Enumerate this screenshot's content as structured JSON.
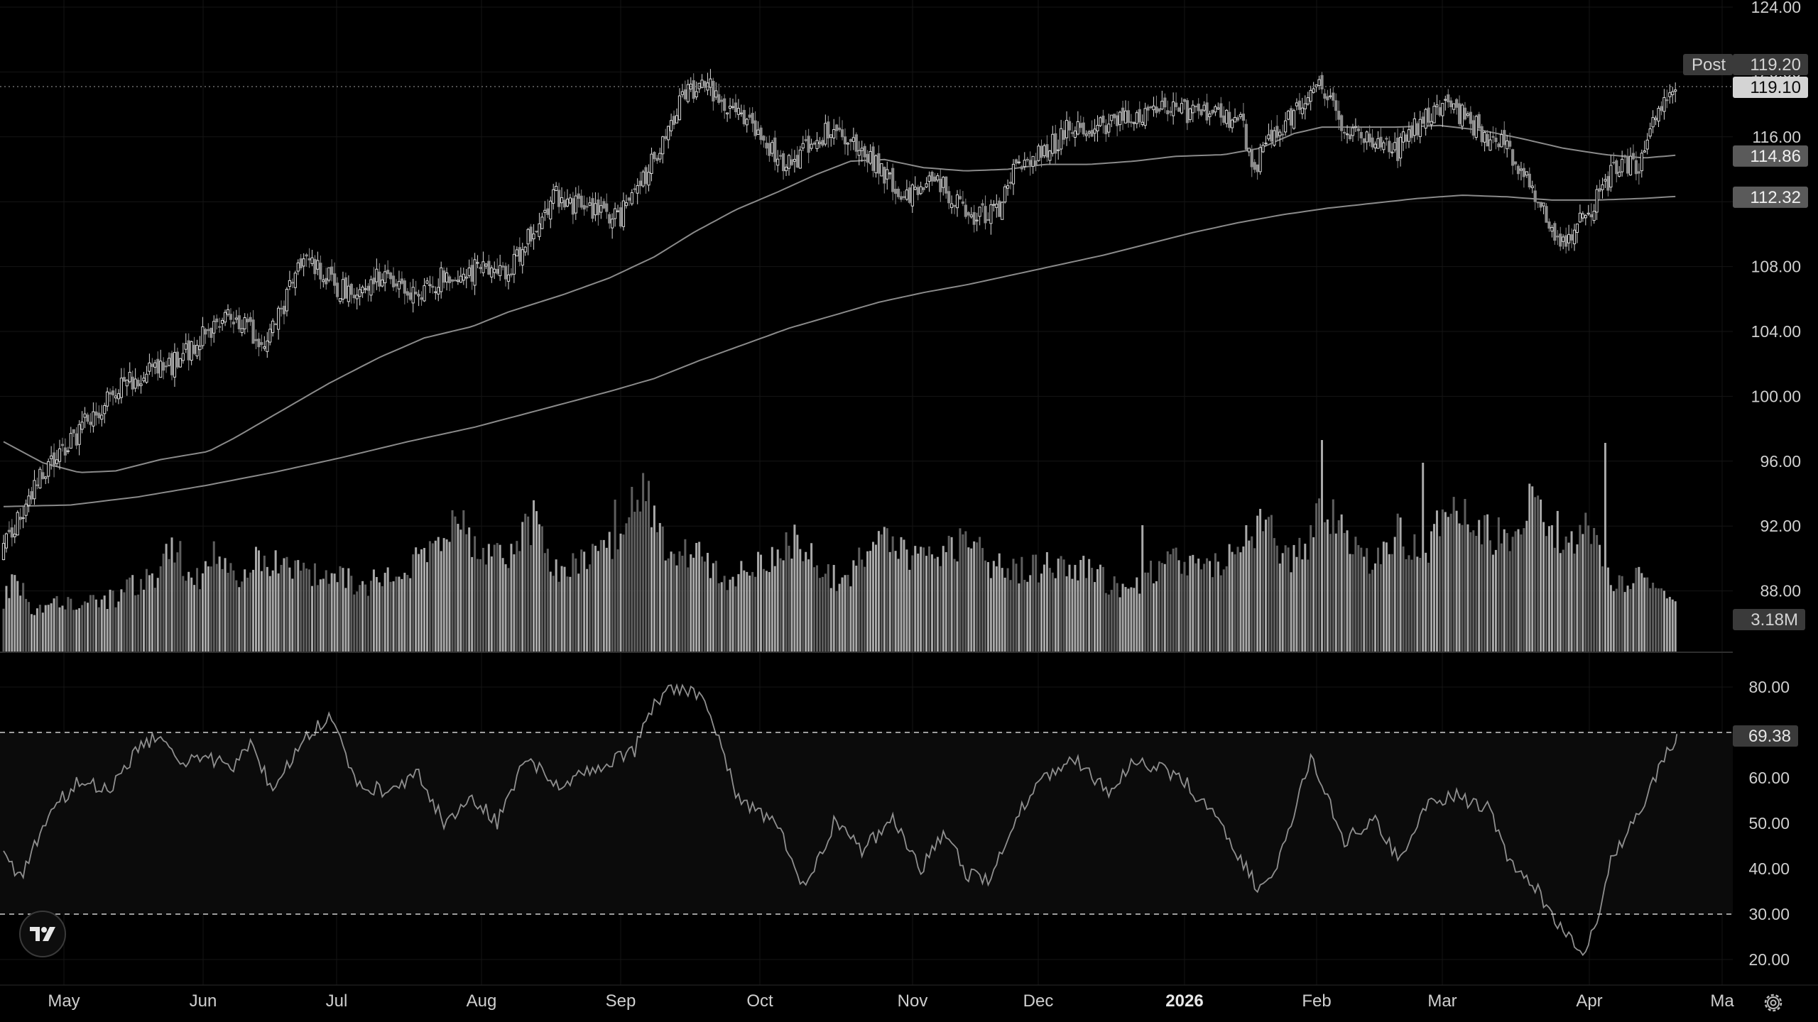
{
  "chart_data": {
    "type": "candlestick",
    "price_axis": {
      "ticks": [
        "124.00",
        "120.00",
        "116.00",
        "112.00",
        "108.00",
        "104.00",
        "100.00",
        "96.00",
        "92.00",
        "88.00"
      ],
      "range": [
        84,
        124
      ]
    },
    "rsi_axis": {
      "ticks": [
        "80.00",
        "70.00",
        "60.00",
        "50.00",
        "40.00",
        "30.00",
        "20.00"
      ],
      "range": [
        16.5,
        89
      ],
      "upper_band": 70,
      "lower_band": 30
    },
    "x_axis": {
      "labels": [
        "May",
        "Jun",
        "Jul",
        "Aug",
        "Sep",
        "Oct",
        "Nov",
        "Dec",
        "2026",
        "Feb",
        "Mar",
        "Apr",
        "Ma"
      ],
      "bold_label": "2026"
    },
    "badges": {
      "post_label": "Post",
      "post_price": "119.20",
      "last_price": "119.10",
      "ma_fast": "114.86",
      "ma_slow": "112.32",
      "volume": "3.18M",
      "rsi": "69.38"
    },
    "anchors": {
      "close": [
        [
          0,
          90.8
        ],
        [
          10,
          94.2
        ],
        [
          25,
          97.5
        ],
        [
          44,
          100.9
        ],
        [
          60,
          102.0
        ],
        [
          79,
          104.9
        ],
        [
          94,
          103.3
        ],
        [
          107,
          108.5
        ],
        [
          124,
          106.1
        ],
        [
          132,
          107.2
        ],
        [
          147,
          106.5
        ],
        [
          162,
          107.8
        ],
        [
          180,
          107.7
        ],
        [
          197,
          112.4
        ],
        [
          210,
          111.3
        ],
        [
          220,
          111.1
        ],
        [
          230,
          114.0
        ],
        [
          237,
          116.2
        ],
        [
          242,
          119.0
        ],
        [
          252,
          118.9
        ],
        [
          262,
          117.4
        ],
        [
          272,
          115.3
        ],
        [
          280,
          114.2
        ],
        [
          288,
          115.8
        ],
        [
          297,
          116.5
        ],
        [
          310,
          114.4
        ],
        [
          321,
          112.3
        ],
        [
          331,
          113.9
        ],
        [
          343,
          111.0
        ],
        [
          354,
          111.4
        ],
        [
          361,
          114.0
        ],
        [
          371,
          115.0
        ],
        [
          380,
          116.5
        ],
        [
          394,
          116.9
        ],
        [
          403,
          117.1
        ],
        [
          413,
          117.8
        ],
        [
          428,
          117.4
        ],
        [
          441,
          116.9
        ],
        [
          446,
          114.2
        ],
        [
          452,
          116.2
        ],
        [
          460,
          117.4
        ],
        [
          470,
          119.2
        ],
        [
          478,
          116.3
        ],
        [
          487,
          115.9
        ],
        [
          497,
          115.2
        ],
        [
          507,
          117.3
        ],
        [
          517,
          117.8
        ],
        [
          527,
          116.3
        ],
        [
          537,
          115.2
        ],
        [
          547,
          112.3
        ],
        [
          555,
          109.4
        ],
        [
          565,
          111.3
        ],
        [
          575,
          114.2
        ],
        [
          585,
          114.5
        ],
        [
          588,
          117.2
        ],
        [
          596,
          119.1
        ]
      ],
      "rsi": [
        [
          0,
          43
        ],
        [
          6,
          38
        ],
        [
          16,
          52
        ],
        [
          26,
          59
        ],
        [
          38,
          58
        ],
        [
          48,
          66
        ],
        [
          56,
          70
        ],
        [
          63,
          62
        ],
        [
          70,
          65
        ],
        [
          82,
          62
        ],
        [
          88,
          68
        ],
        [
          96,
          57
        ],
        [
          104,
          66
        ],
        [
          116,
          74
        ],
        [
          127,
          58
        ],
        [
          140,
          57
        ],
        [
          148,
          61
        ],
        [
          157,
          50
        ],
        [
          167,
          56
        ],
        [
          176,
          50
        ],
        [
          186,
          64
        ],
        [
          200,
          58
        ],
        [
          207,
          61
        ],
        [
          225,
          66
        ],
        [
          232,
          77
        ],
        [
          240,
          80
        ],
        [
          250,
          78
        ],
        [
          262,
          55
        ],
        [
          276,
          50
        ],
        [
          286,
          35
        ],
        [
          296,
          50
        ],
        [
          306,
          44
        ],
        [
          317,
          51
        ],
        [
          327,
          40
        ],
        [
          336,
          48
        ],
        [
          343,
          39
        ],
        [
          351,
          37
        ],
        [
          362,
          53
        ],
        [
          371,
          60
        ],
        [
          382,
          64
        ],
        [
          394,
          57
        ],
        [
          403,
          64
        ],
        [
          412,
          62
        ],
        [
          420,
          60
        ],
        [
          431,
          52
        ],
        [
          448,
          35
        ],
        [
          457,
          45
        ],
        [
          466,
          65
        ],
        [
          478,
          46
        ],
        [
          489,
          51
        ],
        [
          497,
          42
        ],
        [
          508,
          54
        ],
        [
          518,
          56
        ],
        [
          530,
          53
        ],
        [
          537,
          41
        ],
        [
          547,
          35
        ],
        [
          555,
          27
        ],
        [
          563,
          22
        ],
        [
          569,
          30
        ],
        [
          573,
          42
        ],
        [
          584,
          53
        ],
        [
          593,
          66
        ],
        [
          598,
          69.38
        ]
      ],
      "ma50": [
        [
          0,
          97.2
        ],
        [
          14,
          95.9
        ],
        [
          27,
          95.3
        ],
        [
          40,
          95.4
        ],
        [
          56,
          96.1
        ],
        [
          73,
          96.6
        ],
        [
          82,
          97.4
        ],
        [
          97,
          98.9
        ],
        [
          116,
          100.8
        ],
        [
          134,
          102.4
        ],
        [
          150,
          103.6
        ],
        [
          167,
          104.3
        ],
        [
          180,
          105.2
        ],
        [
          200,
          106.3
        ],
        [
          216,
          107.3
        ],
        [
          232,
          108.6
        ],
        [
          246,
          110.1
        ],
        [
          261,
          111.5
        ],
        [
          276,
          112.6
        ],
        [
          290,
          113.7
        ],
        [
          302,
          114.5
        ],
        [
          314,
          114.6
        ],
        [
          328,
          114.1
        ],
        [
          343,
          113.9
        ],
        [
          358,
          114.0
        ],
        [
          371,
          114.3
        ],
        [
          387,
          114.3
        ],
        [
          403,
          114.5
        ],
        [
          418,
          114.8
        ],
        [
          435,
          114.9
        ],
        [
          448,
          115.3
        ],
        [
          460,
          116.2
        ],
        [
          470,
          116.6
        ],
        [
          482,
          116.6
        ],
        [
          497,
          116.6
        ],
        [
          512,
          116.7
        ],
        [
          527,
          116.4
        ],
        [
          541,
          115.9
        ],
        [
          556,
          115.3
        ],
        [
          571,
          114.9
        ],
        [
          585,
          114.7
        ],
        [
          596,
          114.86
        ]
      ],
      "ma200": [
        [
          0,
          93.2
        ],
        [
          24,
          93.3
        ],
        [
          48,
          93.8
        ],
        [
          72,
          94.5
        ],
        [
          96,
          95.3
        ],
        [
          120,
          96.2
        ],
        [
          144,
          97.2
        ],
        [
          168,
          98.1
        ],
        [
          192,
          99.2
        ],
        [
          216,
          100.3
        ],
        [
          232,
          101.1
        ],
        [
          248,
          102.2
        ],
        [
          264,
          103.2
        ],
        [
          280,
          104.2
        ],
        [
          296,
          105.0
        ],
        [
          312,
          105.8
        ],
        [
          328,
          106.4
        ],
        [
          344,
          106.9
        ],
        [
          360,
          107.5
        ],
        [
          376,
          108.1
        ],
        [
          392,
          108.7
        ],
        [
          408,
          109.4
        ],
        [
          424,
          110.1
        ],
        [
          440,
          110.7
        ],
        [
          456,
          111.2
        ],
        [
          472,
          111.6
        ],
        [
          488,
          111.9
        ],
        [
          504,
          112.2
        ],
        [
          520,
          112.4
        ],
        [
          536,
          112.3
        ],
        [
          552,
          112.1
        ],
        [
          568,
          112.1
        ],
        [
          584,
          112.2
        ],
        [
          596,
          112.32
        ]
      ],
      "volume": [
        [
          0,
          1.9
        ],
        [
          4,
          2.7
        ],
        [
          10,
          1.6
        ],
        [
          20,
          1.8
        ],
        [
          40,
          1.9
        ],
        [
          48,
          2.5
        ],
        [
          54,
          2.7
        ],
        [
          60,
          4.0
        ],
        [
          68,
          2.4
        ],
        [
          76,
          3.6
        ],
        [
          84,
          2.7
        ],
        [
          92,
          3.4
        ],
        [
          100,
          3.1
        ],
        [
          110,
          2.8
        ],
        [
          120,
          2.6
        ],
        [
          130,
          2.4
        ],
        [
          140,
          2.9
        ],
        [
          155,
          3.5
        ],
        [
          162,
          4.9
        ],
        [
          170,
          3.4
        ],
        [
          180,
          3.5
        ],
        [
          189,
          4.7
        ],
        [
          196,
          2.8
        ],
        [
          210,
          3.4
        ],
        [
          220,
          3.8
        ],
        [
          228,
          6.2
        ],
        [
          234,
          3.9
        ],
        [
          240,
          3.6
        ],
        [
          248,
          3.4
        ],
        [
          258,
          2.6
        ],
        [
          266,
          2.9
        ],
        [
          275,
          3.4
        ],
        [
          282,
          4.1
        ],
        [
          292,
          2.8
        ],
        [
          300,
          2.5
        ],
        [
          308,
          3.7
        ],
        [
          316,
          3.8
        ],
        [
          324,
          3.2
        ],
        [
          336,
          3.6
        ],
        [
          343,
          4.1
        ],
        [
          352,
          3.2
        ],
        [
          360,
          2.9
        ],
        [
          370,
          3.0
        ],
        [
          380,
          3.2
        ],
        [
          392,
          2.6
        ],
        [
          402,
          2.1
        ],
        [
          410,
          2.9
        ],
        [
          420,
          3.3
        ],
        [
          432,
          3.1
        ],
        [
          442,
          3.9
        ],
        [
          450,
          4.5
        ],
        [
          458,
          3.2
        ],
        [
          465,
          3.9
        ],
        [
          471,
          5.3
        ],
        [
          476,
          4.4
        ],
        [
          482,
          3.6
        ],
        [
          490,
          3.2
        ],
        [
          496,
          4.3
        ],
        [
          506,
          3.6
        ],
        [
          514,
          4.7
        ],
        [
          522,
          5.1
        ],
        [
          528,
          4.3
        ],
        [
          536,
          4.0
        ],
        [
          544,
          5.1
        ],
        [
          552,
          4.5
        ],
        [
          558,
          3.8
        ],
        [
          564,
          4.2
        ],
        [
          570,
          3.4
        ],
        [
          574,
          2.3
        ],
        [
          582,
          2.6
        ],
        [
          590,
          2.4
        ],
        [
          596,
          1.9
        ]
      ]
    }
  }
}
